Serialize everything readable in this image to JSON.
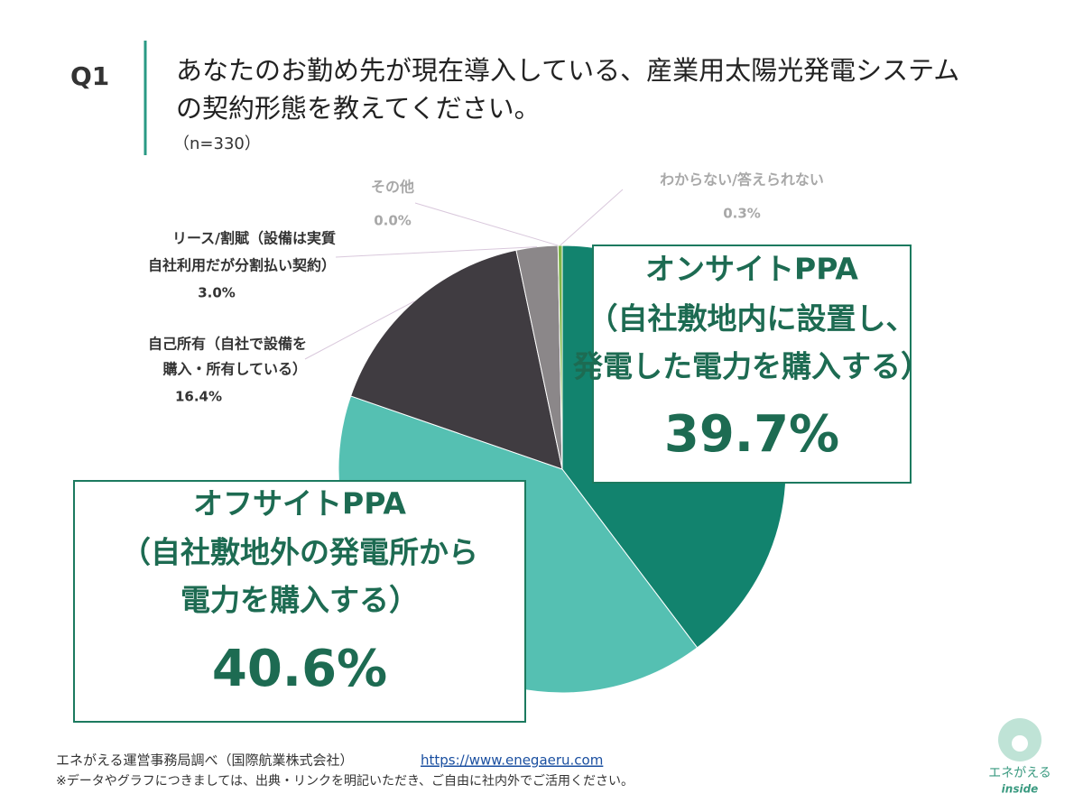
{
  "header": {
    "q": "Q1",
    "title": [
      "あなたのお勤め先が現在導入している、産業用太陽光発電システム",
      "の契約形態を教えてください。"
    ],
    "n": "（n=330）"
  },
  "chart_data": {
    "type": "pie",
    "categories": [
      [
        "オンサイトPPA",
        "（自社敷地内に設置し、",
        "発電した電力を購入する）"
      ],
      [
        "オフサイトPPA",
        "（自社敷地外の発電所から",
        "電力を購入する）"
      ],
      [
        "自己所有（自社で設備を",
        "購入・所有している）"
      ],
      [
        "リース/割賦（設備は実質",
        "自社利用だが分割払い契約）"
      ],
      [
        "その他"
      ],
      [
        "わからない/答えられない"
      ]
    ],
    "values": [
      39.7,
      40.6,
      16.4,
      3.0,
      0.0,
      0.3
    ],
    "value_labels": [
      "39.7%",
      "40.6%",
      "16.4%",
      "3.0%",
      "0.0%",
      "0.3%"
    ],
    "colors": [
      "#12836e",
      "#55c0b2",
      "#403c41",
      "#8b8789",
      "#b5b5b5",
      "#7fb446"
    ]
  },
  "footer": {
    "source": "エネがえる運営事務局調べ（国際航業株式会社）",
    "url": "https://www.enegaeru.com",
    "note": "※データやグラフにつきましては、出典・リンクを明記いただき、ご自由に社内外でご活用ください。"
  },
  "logo": {
    "name": "エネがえる",
    "sub": "inside"
  }
}
